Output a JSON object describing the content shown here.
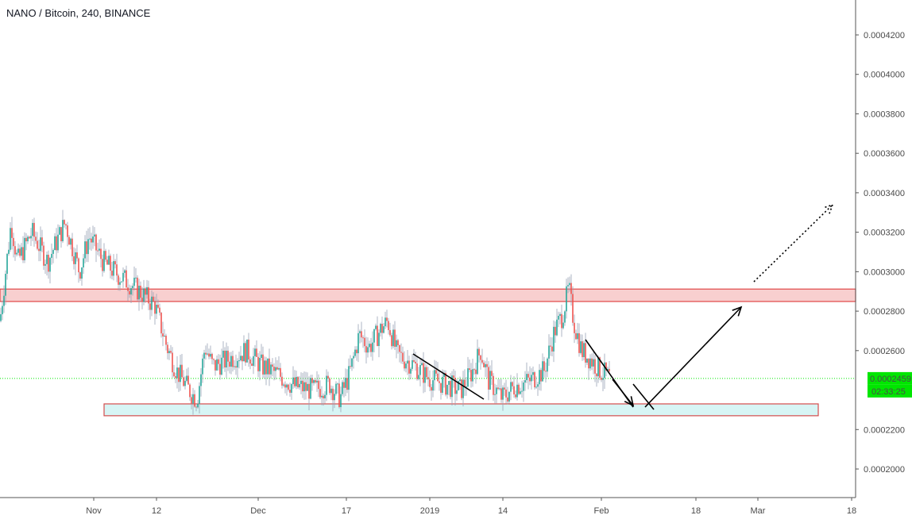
{
  "header": {
    "title": "NANO / Bitcoin, 240, BINANCE"
  },
  "chart_data": {
    "type": "candlestick",
    "symbol": "NANO / Bitcoin",
    "interval": "240",
    "exchange": "BINANCE",
    "ylim": [
      0.00019,
      0.000435
    ],
    "y_ticks": [
      "0.0004200",
      "0.0004000",
      "0.0003800",
      "0.0003600",
      "0.0003400",
      "0.0003200",
      "0.0003000",
      "0.0002800",
      "0.0002600",
      "0.0002200",
      "0.0002000"
    ],
    "x_ticks": [
      "Nov",
      "12",
      "Dec",
      "17",
      "2019",
      "14",
      "Feb",
      "18",
      "Mar",
      "18"
    ],
    "price_trend": [
      [
        0,
        0.000275
      ],
      [
        14,
        0.000325
      ],
      [
        22,
        0.000305
      ],
      [
        40,
        0.00032
      ],
      [
        60,
        0.000305
      ],
      [
        82,
        0.000325
      ],
      [
        100,
        0.0003
      ],
      [
        112,
        0.000318
      ],
      [
        130,
        0.000305
      ],
      [
        150,
        0.000298
      ],
      [
        170,
        0.000292
      ],
      [
        195,
        0.000283
      ],
      [
        210,
        0.000262
      ],
      [
        222,
        0.00025
      ],
      [
        238,
        0.00024
      ],
      [
        248,
        0.000235
      ],
      [
        258,
        0.000262
      ],
      [
        268,
        0.000252
      ],
      [
        290,
        0.000256
      ],
      [
        310,
        0.00026
      ],
      [
        330,
        0.000252
      ],
      [
        350,
        0.000248
      ],
      [
        370,
        0.000242
      ],
      [
        395,
        0.00024
      ],
      [
        415,
        0.000243
      ],
      [
        428,
        0.000236
      ],
      [
        440,
        0.000248
      ],
      [
        452,
        0.000268
      ],
      [
        465,
        0.000262
      ],
      [
        478,
        0.00027
      ],
      [
        488,
        0.000275
      ],
      [
        500,
        0.000258
      ],
      [
        520,
        0.000253
      ],
      [
        540,
        0.000246
      ],
      [
        560,
        0.000243
      ],
      [
        580,
        0.00024
      ],
      [
        595,
        0.00025
      ],
      [
        605,
        0.00026
      ],
      [
        615,
        0.000245
      ],
      [
        632,
        0.000236
      ],
      [
        648,
        0.000242
      ],
      [
        668,
        0.000245
      ],
      [
        685,
        0.00025
      ],
      [
        698,
        0.00027
      ],
      [
        708,
        0.000278
      ],
      [
        716,
        0.000292
      ],
      [
        722,
        0.000275
      ],
      [
        732,
        0.00026
      ],
      [
        745,
        0.000255
      ],
      [
        755,
        0.00025
      ],
      [
        768,
        0.000246
      ]
    ],
    "last_price": "0.0002459",
    "countdown": "02:33:25",
    "resistance_zone": [
      0.0002849,
      0.0002912
    ],
    "support_zone": [
      0.000227,
      0.000233
    ],
    "colors": {
      "up": "#26a69a",
      "down": "#ef5350",
      "resistance_fill": "#f8cfcf",
      "resistance_border": "#e04848",
      "support_fill": "#d7f5f5",
      "support_border": "#d44c4c",
      "price_line": "#00e600",
      "price_badge": "#00e600"
    }
  }
}
